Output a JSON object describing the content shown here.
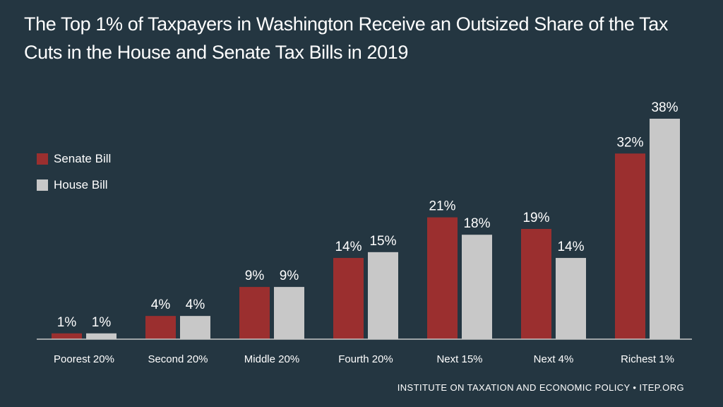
{
  "chart_data": {
    "type": "bar",
    "title": "The Top 1% of Taxpayers in Washington Receive an Outsized Share of the Tax Cuts in the House and Senate Tax Bills in 2019",
    "categories": [
      "Poorest 20%",
      "Second 20%",
      "Middle 20%",
      "Fourth 20%",
      "Next 15%",
      "Next 4%",
      "Richest 1%"
    ],
    "series": [
      {
        "name": "Senate Bill",
        "values": [
          1,
          4,
          9,
          14,
          21,
          19,
          32
        ],
        "color": "#9b2f2f"
      },
      {
        "name": "House Bill",
        "values": [
          1,
          4,
          9,
          15,
          18,
          14,
          38
        ],
        "color": "#c8c8c8"
      }
    ],
    "value_suffix": "%",
    "ylim": [
      0,
      38
    ],
    "grid": false,
    "legend": "left"
  },
  "footer": "INSTITUTE ON TAXATION AND ECONOMIC POLICY • ITEP.ORG"
}
